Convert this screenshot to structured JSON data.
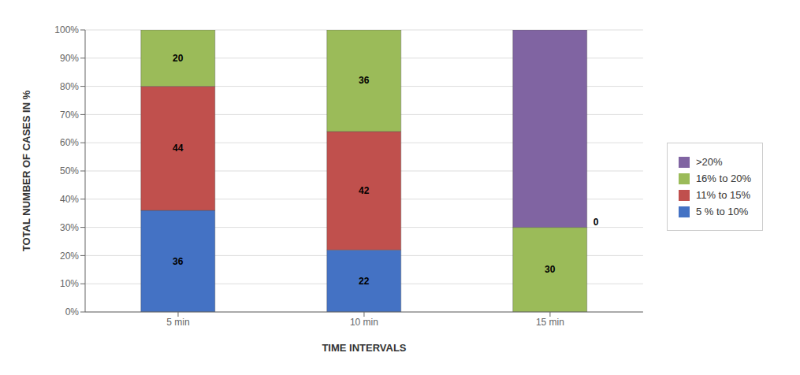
{
  "chart_data": {
    "type": "bar",
    "stacked": true,
    "data_labels": true,
    "grid": true,
    "legend": "right",
    "xlabel": "TIME INTERVALS",
    "ylabel": "TOTAL NUMBER OF CASES IN %",
    "categories": [
      "5 min",
      "10 min",
      "15 min"
    ],
    "series": [
      {
        "name": "5 % to 10%",
        "color": "#4472C4",
        "values": [
          36,
          22,
          0
        ]
      },
      {
        "name": "11% to 15%",
        "color": "#C0504D",
        "values": [
          44,
          42,
          0
        ]
      },
      {
        "name": "16% to 20%",
        "color": "#9BBB59",
        "values": [
          20,
          36,
          30
        ]
      },
      {
        "name": ">20%",
        "color": "#8064A2",
        "values": [
          0,
          0,
          70
        ]
      }
    ],
    "ylim": [
      0,
      100
    ],
    "yticks": [
      {
        "value": 0,
        "label": "0%"
      },
      {
        "value": 10,
        "label": "10%"
      },
      {
        "value": 20,
        "label": "20%"
      },
      {
        "value": 30,
        "label": "30%"
      },
      {
        "value": 40,
        "label": "40%"
      },
      {
        "value": 50,
        "label": "50%"
      },
      {
        "value": 60,
        "label": "60%"
      },
      {
        "value": 70,
        "label": "70%"
      },
      {
        "value": 80,
        "label": "80%"
      },
      {
        "value": 90,
        "label": "90%"
      },
      {
        "value": 100,
        "label": "100%"
      }
    ]
  }
}
